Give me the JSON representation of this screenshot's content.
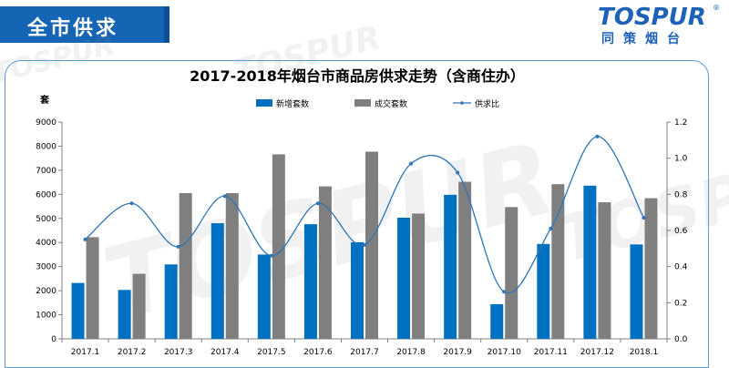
{
  "header": {
    "title": "全市供求"
  },
  "brand": {
    "name": "TOSPUR",
    "subtitle": "同策烟台",
    "reg_mark": "®"
  },
  "watermarks": [
    "TOSPUR",
    "TOSPUR",
    "TOSPUR",
    "TOSPUR"
  ],
  "colors": {
    "header": "#1565b5",
    "new_supply": "#0070c0",
    "transactions": "#7f7f7f",
    "ratio": "#2e75b6",
    "panel_border": "#5b9bd5"
  },
  "chart_data": {
    "type": "bar",
    "title": "2017-2018年烟台市商品房供求走势（含商住办）",
    "ylabel": "套",
    "ylim": [
      0,
      9000
    ],
    "yticks": [
      0,
      1000,
      2000,
      3000,
      4000,
      5000,
      6000,
      7000,
      8000,
      9000
    ],
    "y2lim": [
      0,
      1.2
    ],
    "y2ticks": [
      "0.0",
      "0.2",
      "0.4",
      "0.6",
      "0.8",
      "1.0",
      "1.2"
    ],
    "legend_position": "top",
    "categories": [
      "2017.1",
      "2017.2",
      "2017.3",
      "2017.4",
      "2017.5",
      "2017.6",
      "2017.7",
      "2017.8",
      "2017.9",
      "2017.10",
      "2017.11",
      "2017.12",
      "2018.1"
    ],
    "series": [
      {
        "name": "新增套数",
        "type": "bar",
        "values": [
          2320,
          2030,
          3090,
          4800,
          3500,
          4760,
          4010,
          5030,
          5980,
          1440,
          3940,
          6360,
          3920
        ]
      },
      {
        "name": "成交套数",
        "type": "bar",
        "values": [
          4220,
          2700,
          6050,
          6050,
          7660,
          6330,
          7770,
          5200,
          6520,
          5470,
          6420,
          5670,
          5840
        ]
      },
      {
        "name": "供求比",
        "type": "line",
        "axis": "right",
        "values": [
          0.55,
          0.75,
          0.51,
          0.79,
          0.46,
          0.75,
          0.52,
          0.97,
          0.92,
          0.26,
          0.61,
          1.12,
          0.67
        ]
      }
    ]
  }
}
